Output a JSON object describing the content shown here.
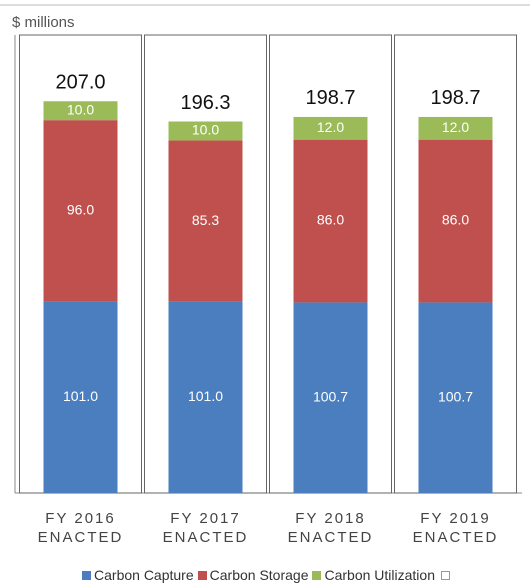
{
  "chart_data": {
    "type": "stacked_bar",
    "y_label": "$ millions",
    "categories": [
      "FY 2016 ENACTED",
      "FY 2017 ENACTED",
      "FY 2018 ENACTED",
      "FY 2019 ENACTED"
    ],
    "series": [
      {
        "name": "Carbon Capture",
        "color": "#4a7ebf",
        "values": [
          101.0,
          101.0,
          100.7,
          100.7
        ],
        "value_labels": [
          "101.0",
          "101.0",
          "100.7",
          "100.7"
        ]
      },
      {
        "name": "Carbon Storage",
        "color": "#c0504d",
        "values": [
          96.0,
          85.3,
          86.0,
          86.0
        ],
        "value_labels": [
          "96.0",
          "85.3",
          "86.0",
          "86.0"
        ]
      },
      {
        "name": "Carbon Utilization",
        "color": "#9bbb59",
        "values": [
          10.0,
          10.0,
          12.0,
          12.0
        ],
        "value_labels": [
          "10.0",
          "10.0",
          "12.0",
          "12.0"
        ]
      }
    ],
    "totals": [
      207.0,
      196.3,
      198.7,
      198.7
    ],
    "total_labels": [
      "207.0",
      "196.3",
      "198.7",
      "198.7"
    ],
    "ylim": [
      0,
      242
    ],
    "legend": "bottom"
  }
}
